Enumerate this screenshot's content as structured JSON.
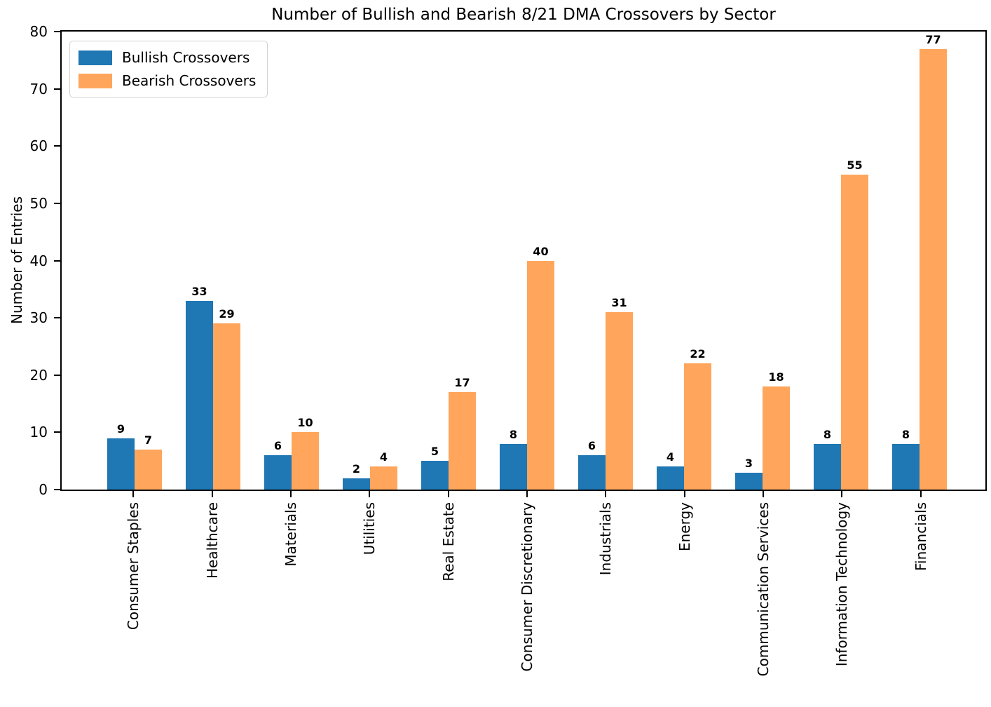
{
  "chart_data": {
    "type": "bar",
    "title": "Number of Bullish and Bearish 8/21 DMA Crossovers by Sector",
    "xlabel": "",
    "ylabel": "Number of Entries",
    "ylim": [
      0,
      80
    ],
    "yticks": [
      0,
      10,
      20,
      30,
      40,
      50,
      60,
      70,
      80
    ],
    "grid": false,
    "legend_position": "upper left",
    "bar_value_labels": true,
    "categories": [
      "Consumer Staples",
      "Healthcare",
      "Materials",
      "Utilities",
      "Real Estate",
      "Consumer Discretionary",
      "Industrials",
      "Energy",
      "Communication Services",
      "Information Technology",
      "Financials"
    ],
    "series": [
      {
        "name": "Bullish Crossovers",
        "color": "#1f77b4",
        "values": [
          9,
          33,
          6,
          2,
          5,
          8,
          6,
          4,
          3,
          8,
          8
        ]
      },
      {
        "name": "Bearish Crossovers",
        "color": "#ffa65c",
        "values": [
          7,
          29,
          10,
          4,
          17,
          40,
          31,
          22,
          18,
          55,
          77
        ]
      }
    ]
  }
}
